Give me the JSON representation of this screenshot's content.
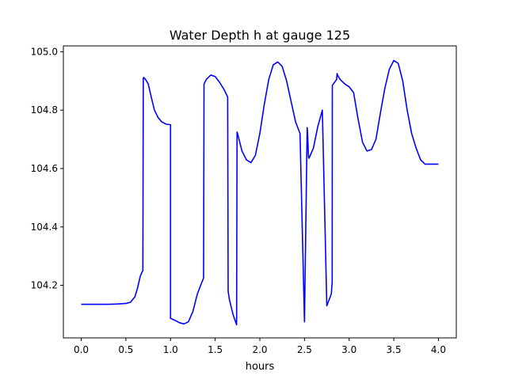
{
  "chart_data": {
    "type": "line",
    "title": "Water Depth h at gauge 125",
    "xlabel": "hours",
    "ylabel": "",
    "xlim": [
      -0.2,
      4.2
    ],
    "ylim": [
      104.02,
      105.02
    ],
    "xticks": [
      0.0,
      0.5,
      1.0,
      1.5,
      2.0,
      2.5,
      3.0,
      3.5,
      4.0
    ],
    "xtick_labels": [
      "0.0",
      "0.5",
      "1.0",
      "1.5",
      "2.0",
      "2.5",
      "3.0",
      "3.5",
      "4.0"
    ],
    "yticks": [
      104.2,
      104.4,
      104.6,
      104.8,
      105.0
    ],
    "ytick_labels": [
      "104.2",
      "104.4",
      "104.6",
      "104.8",
      "105.0"
    ],
    "grid": false,
    "color": "#0000ff",
    "series": [
      {
        "x": [
          0.0,
          0.1,
          0.2,
          0.3,
          0.4,
          0.5,
          0.55,
          0.6,
          0.63,
          0.66,
          0.68,
          0.69,
          0.695,
          0.7,
          0.72,
          0.75,
          0.78,
          0.82,
          0.86,
          0.9,
          0.95,
          1.0,
          1.0,
          1.05,
          1.1,
          1.15,
          1.2,
          1.25,
          1.3,
          1.35,
          1.37,
          1.375,
          1.4,
          1.45,
          1.5,
          1.55,
          1.6,
          1.64,
          1.645,
          1.66,
          1.7,
          1.74,
          1.745,
          1.75,
          1.8,
          1.85,
          1.9,
          1.95,
          2.0,
          2.05,
          2.1,
          2.15,
          2.2,
          2.25,
          2.3,
          2.35,
          2.4,
          2.45,
          2.5,
          2.53,
          2.535,
          2.54,
          2.545,
          2.55,
          2.6,
          2.65,
          2.7,
          2.75,
          2.8,
          2.81,
          2.812,
          2.86,
          2.865,
          2.87,
          2.9,
          2.95,
          3.0,
          3.05,
          3.1,
          3.15,
          3.2,
          3.25,
          3.3,
          3.35,
          3.4,
          3.45,
          3.5,
          3.55,
          3.6,
          3.65,
          3.7,
          3.75,
          3.8,
          3.85,
          3.9,
          3.95,
          4.0
        ],
        "y": [
          104.135,
          104.135,
          104.135,
          104.135,
          104.136,
          104.138,
          104.142,
          104.16,
          104.19,
          104.23,
          104.245,
          104.25,
          104.91,
          104.912,
          104.905,
          104.89,
          104.85,
          104.8,
          104.775,
          104.76,
          104.752,
          104.75,
          104.087,
          104.08,
          104.072,
          104.068,
          104.075,
          104.11,
          104.17,
          104.21,
          104.225,
          104.89,
          104.905,
          104.92,
          104.915,
          104.895,
          104.87,
          104.845,
          104.18,
          104.15,
          104.1,
          104.065,
          104.725,
          104.72,
          104.66,
          104.63,
          104.62,
          104.645,
          104.72,
          104.82,
          104.905,
          104.955,
          104.965,
          104.95,
          104.9,
          104.83,
          104.76,
          104.72,
          104.075,
          104.74,
          104.72,
          104.68,
          104.64,
          104.635,
          104.67,
          104.745,
          104.8,
          104.13,
          104.17,
          104.21,
          104.885,
          104.905,
          104.925,
          104.92,
          104.905,
          104.89,
          104.88,
          104.86,
          104.77,
          104.69,
          104.66,
          104.665,
          104.7,
          104.79,
          104.875,
          104.94,
          104.97,
          104.96,
          104.9,
          104.8,
          104.72,
          104.67,
          104.63,
          104.615,
          104.615,
          104.615,
          104.615
        ]
      }
    ]
  }
}
